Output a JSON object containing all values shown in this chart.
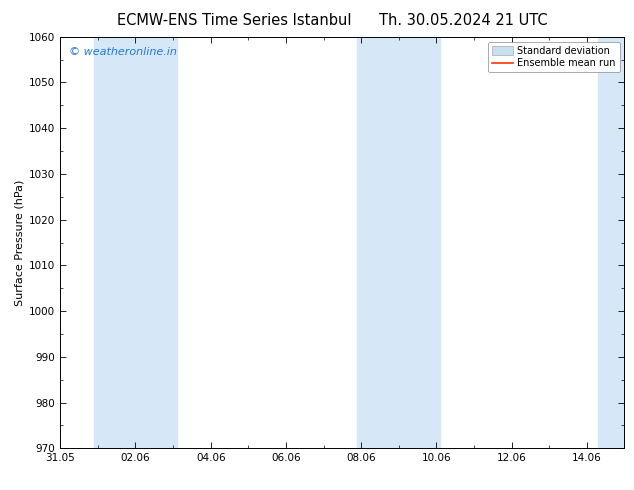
{
  "title_left": "ECMW-ENS Time Series Istanbul",
  "title_right": "Th. 30.05.2024 21 UTC",
  "ylabel": "Surface Pressure (hPa)",
  "ylim": [
    970,
    1060
  ],
  "yticks": [
    970,
    980,
    990,
    1000,
    1010,
    1020,
    1030,
    1040,
    1050,
    1060
  ],
  "xtick_labels": [
    "31.05",
    "02.06",
    "04.06",
    "06.06",
    "08.06",
    "10.06",
    "12.06",
    "14.06"
  ],
  "xtick_positions": [
    0,
    2,
    4,
    6,
    8,
    10,
    12,
    14
  ],
  "x_min": 0,
  "x_max": 15,
  "shaded_bands": [
    {
      "x_start": 0.9,
      "x_end": 3.1,
      "color": "#d6e8f7"
    },
    {
      "x_start": 7.9,
      "x_end": 10.1,
      "color": "#d6e8f7"
    },
    {
      "x_start": 14.3,
      "x_end": 15.0,
      "color": "#d6e8f7"
    }
  ],
  "watermark_text": "© weatheronline.in",
  "watermark_color": "#2277dd",
  "legend_std_color": "#c8dff0",
  "legend_std_edge": "#aaaaaa",
  "legend_mean_color": "#ff3300",
  "bg_color": "#ffffff",
  "title_fontsize": 10.5,
  "ylabel_fontsize": 8,
  "tick_fontsize": 7.5,
  "legend_fontsize": 7,
  "watermark_fontsize": 8
}
